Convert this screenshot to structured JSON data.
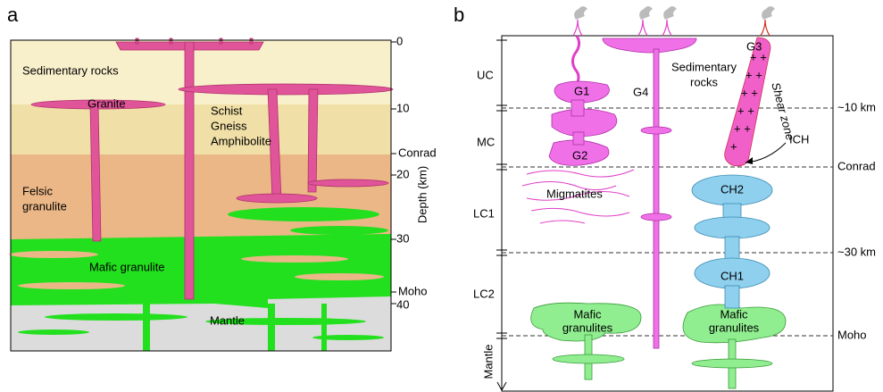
{
  "panel_a": {
    "label": "a",
    "sedimentary": "Sedimentary rocks",
    "granite": "Granite",
    "metamorphic": [
      "Schist",
      "Gneiss",
      "Amphibolite"
    ],
    "felsic": [
      "Felsic",
      "granulite"
    ],
    "mafic": "Mafic granulite",
    "mantle": "Mantle",
    "depth_title": "Depth (km)",
    "depth_ticks": [
      "0",
      "10",
      "Conrad",
      "20",
      "30",
      "Moho",
      "40"
    ]
  },
  "panel_b": {
    "label": "b",
    "layers": [
      "UC",
      "MC",
      "LC1",
      "LC2",
      "Mantle"
    ],
    "boundaries": [
      "~10 km",
      "Conrad",
      "~30 km",
      "Moho"
    ],
    "granites": [
      "G1",
      "G2",
      "G3",
      "G4"
    ],
    "sedimentary": [
      "Sedimentary",
      "rocks"
    ],
    "shear_zone": "Shear zone",
    "ich": "ICH",
    "migmatites": "Migmatites",
    "chambers": [
      "CH2",
      "CH1"
    ],
    "mafic_left": [
      "Mafic",
      "granulites"
    ],
    "mafic_right": [
      "Mafic",
      "granulites"
    ]
  }
}
